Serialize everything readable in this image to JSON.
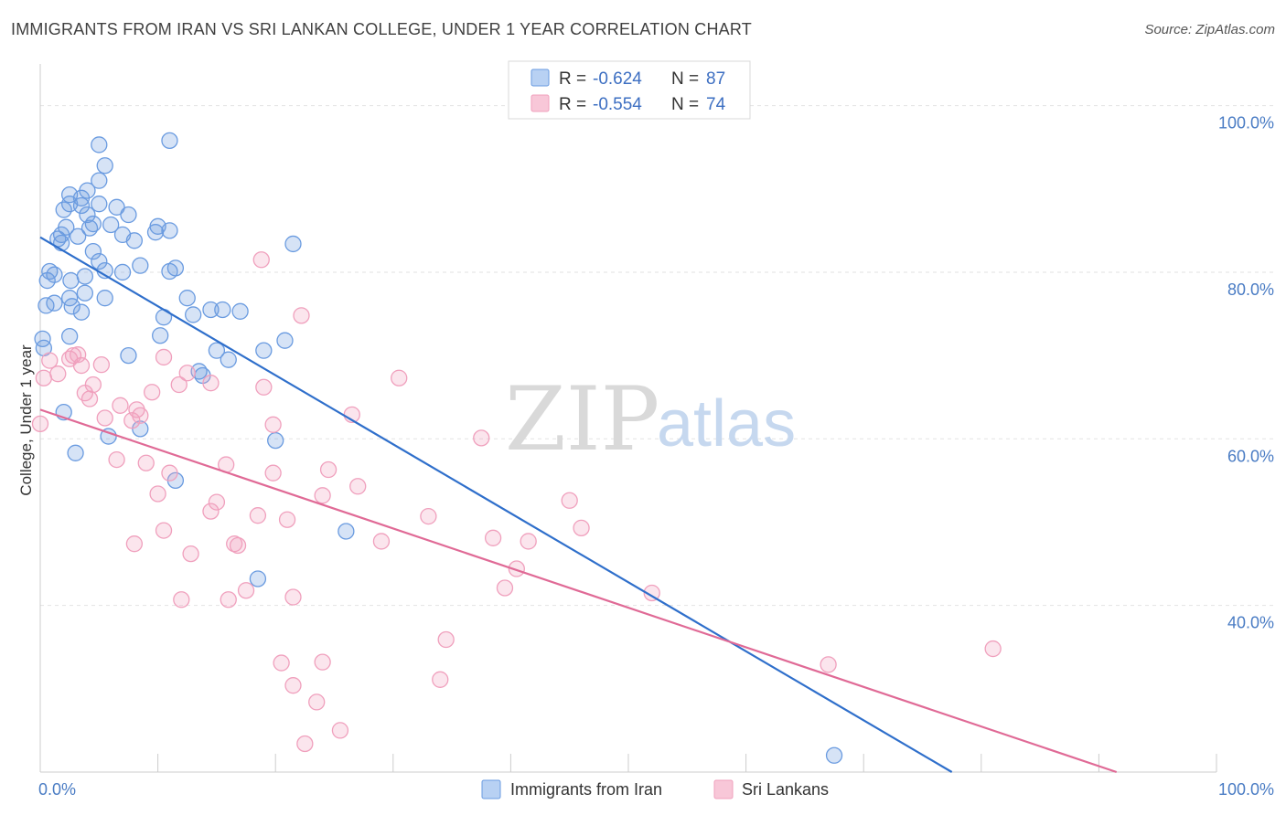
{
  "header": {
    "title": "IMMIGRANTS FROM IRAN VS SRI LANKAN COLLEGE, UNDER 1 YEAR CORRELATION CHART",
    "source": "Source: ZipAtlas.com"
  },
  "watermark": {
    "zip": "ZIP",
    "atlas": "atlas"
  },
  "legend": {
    "r_label": "R =",
    "n_label": "N =",
    "entries": [
      {
        "r": "-0.624",
        "n": "87"
      },
      {
        "r": "-0.554",
        "n": "74"
      }
    ]
  },
  "chart_data": {
    "type": "scatter",
    "title": "IMMIGRANTS FROM IRAN VS SRI LANKAN COLLEGE, UNDER 1 YEAR CORRELATION CHART",
    "xlabel": "",
    "ylabel": "College, Under 1 year",
    "xlim": [
      0,
      100
    ],
    "ylim": [
      20,
      105
    ],
    "x_tick_labels": [
      {
        "value": 0,
        "label": "0.0%"
      },
      {
        "value": 100,
        "label": "100.0%"
      }
    ],
    "y_tick_labels": [
      {
        "value": 100,
        "label": "100.0%"
      },
      {
        "value": 80,
        "label": "80.0%"
      },
      {
        "value": 60,
        "label": "60.0%"
      },
      {
        "value": 40,
        "label": "40.0%"
      }
    ],
    "grid": true,
    "legend_position": "top-center",
    "series": [
      {
        "name": "Immigrants from Iran",
        "color": "#6a9be0",
        "line_color": "#2f6fcb",
        "trend": [
          [
            0,
            84.2
          ],
          [
            77.5,
            20
          ]
        ],
        "points": [
          [
            5,
            95.3
          ],
          [
            11,
            95.8
          ],
          [
            5.5,
            92.8
          ],
          [
            5,
            91
          ],
          [
            4,
            89.8
          ],
          [
            2.5,
            89.3
          ],
          [
            3.5,
            88.9
          ],
          [
            2.5,
            88.2
          ],
          [
            3.5,
            88
          ],
          [
            5,
            88.2
          ],
          [
            6.5,
            87.8
          ],
          [
            7.5,
            86.9
          ],
          [
            2,
            87.5
          ],
          [
            4,
            86.9
          ],
          [
            4.5,
            85.8
          ],
          [
            6,
            85.7
          ],
          [
            10,
            85.5
          ],
          [
            2.2,
            85.4
          ],
          [
            4.2,
            85.3
          ],
          [
            11,
            85
          ],
          [
            9.8,
            84.8
          ],
          [
            1.8,
            84.5
          ],
          [
            3.2,
            84.3
          ],
          [
            1.5,
            84
          ],
          [
            7,
            84.5
          ],
          [
            8,
            83.8
          ],
          [
            1.8,
            83.5
          ],
          [
            21.5,
            83.4
          ],
          [
            4.5,
            82.5
          ],
          [
            5,
            81.3
          ],
          [
            8.5,
            80.8
          ],
          [
            11.5,
            80.5
          ],
          [
            5.5,
            80.2
          ],
          [
            7,
            80
          ],
          [
            11,
            80.1
          ],
          [
            0.8,
            80.1
          ],
          [
            1.2,
            79.7
          ],
          [
            3.8,
            79.5
          ],
          [
            0.6,
            79
          ],
          [
            2.6,
            79
          ],
          [
            3.8,
            77.5
          ],
          [
            2.5,
            76.9
          ],
          [
            5.5,
            76.9
          ],
          [
            12.5,
            76.9
          ],
          [
            1.2,
            76.3
          ],
          [
            0.5,
            76
          ],
          [
            2.7,
            75.9
          ],
          [
            3.5,
            75.2
          ],
          [
            14.5,
            75.5
          ],
          [
            15.5,
            75.5
          ],
          [
            17,
            75.3
          ],
          [
            13,
            74.9
          ],
          [
            10.5,
            74.6
          ],
          [
            2.5,
            72.3
          ],
          [
            10.2,
            72.4
          ],
          [
            20.8,
            71.8
          ],
          [
            0.2,
            72
          ],
          [
            0.3,
            70.9
          ],
          [
            15,
            70.6
          ],
          [
            19,
            70.6
          ],
          [
            7.5,
            70
          ],
          [
            16,
            69.5
          ],
          [
            13.5,
            68.1
          ],
          [
            13.8,
            67.6
          ],
          [
            2,
            63.2
          ],
          [
            8.5,
            61.2
          ],
          [
            5.8,
            60.3
          ],
          [
            20,
            59.8
          ],
          [
            3,
            58.3
          ],
          [
            11.5,
            55
          ],
          [
            26,
            48.9
          ],
          [
            18.5,
            43.2
          ],
          [
            67.5,
            22
          ]
        ]
      },
      {
        "name": "Sri Lankans",
        "color": "#f0a0bd",
        "line_color": "#e06a96",
        "trend": [
          [
            0,
            63.5
          ],
          [
            91.5,
            20
          ]
        ],
        "points": [
          [
            18.8,
            81.5
          ],
          [
            22.2,
            74.8
          ],
          [
            2.8,
            70
          ],
          [
            3.2,
            70.1
          ],
          [
            2.5,
            69.6
          ],
          [
            10.5,
            69.8
          ],
          [
            0.8,
            69.4
          ],
          [
            5.2,
            68.9
          ],
          [
            1.5,
            67.8
          ],
          [
            3.5,
            68.8
          ],
          [
            12.5,
            67.9
          ],
          [
            0.3,
            67.3
          ],
          [
            30.5,
            67.3
          ],
          [
            14.5,
            66.7
          ],
          [
            11.8,
            66.5
          ],
          [
            4.5,
            66.5
          ],
          [
            19,
            66.2
          ],
          [
            9.5,
            65.6
          ],
          [
            3.8,
            65.5
          ],
          [
            4.2,
            64.8
          ],
          [
            6.8,
            64
          ],
          [
            8.2,
            63.5
          ],
          [
            8.5,
            62.8
          ],
          [
            26.5,
            62.9
          ],
          [
            5.5,
            62.5
          ],
          [
            7.8,
            62.2
          ],
          [
            19.8,
            61.7
          ],
          [
            0,
            61.8
          ],
          [
            37.5,
            60.1
          ],
          [
            6.5,
            57.5
          ],
          [
            9,
            57.1
          ],
          [
            15.8,
            56.9
          ],
          [
            24.5,
            56.3
          ],
          [
            11,
            55.9
          ],
          [
            19.8,
            55.9
          ],
          [
            27,
            54.3
          ],
          [
            24,
            53.2
          ],
          [
            10,
            53.4
          ],
          [
            15,
            52.4
          ],
          [
            45,
            52.6
          ],
          [
            14.5,
            51.3
          ],
          [
            18.5,
            50.8
          ],
          [
            21,
            50.3
          ],
          [
            33,
            50.7
          ],
          [
            46,
            49.3
          ],
          [
            10.5,
            49
          ],
          [
            38.5,
            48.1
          ],
          [
            41.5,
            47.7
          ],
          [
            29,
            47.7
          ],
          [
            8,
            47.4
          ],
          [
            16.5,
            47.4
          ],
          [
            16.8,
            47.2
          ],
          [
            12.8,
            46.2
          ],
          [
            40.5,
            44.4
          ],
          [
            39.5,
            42.1
          ],
          [
            17.5,
            41.8
          ],
          [
            52,
            41.5
          ],
          [
            21.5,
            41
          ],
          [
            12,
            40.7
          ],
          [
            16,
            40.7
          ],
          [
            34.5,
            35.9
          ],
          [
            81,
            34.8
          ],
          [
            67,
            32.9
          ],
          [
            20.5,
            33.1
          ],
          [
            24,
            33.2
          ],
          [
            34,
            31.1
          ],
          [
            21.5,
            30.4
          ],
          [
            23.5,
            28.4
          ],
          [
            25.5,
            25
          ],
          [
            22.5,
            23.4
          ]
        ]
      }
    ]
  }
}
